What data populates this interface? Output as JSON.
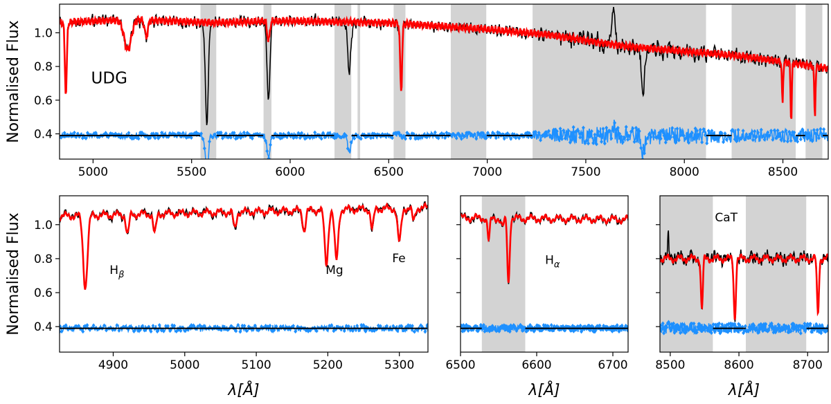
{
  "colors": {
    "observed": "#000000",
    "model": "#ff0000",
    "residual": "#1e90ff",
    "masked_region": "#d3d3d3",
    "baseline": "#000000"
  },
  "chart_data": [
    {
      "id": "full",
      "type": "line",
      "xlabel": "",
      "ylabel": "Normalised Flux",
      "xlim": [
        4830,
        8730
      ],
      "ylim": [
        0.25,
        1.17
      ],
      "xticks": [
        5000,
        5500,
        6000,
        6500,
        7000,
        7500,
        8000,
        8500
      ],
      "yticks": [
        0.4,
        0.6,
        0.8,
        1.0
      ],
      "show_ytick_labels": true,
      "baseline": 0.39,
      "masked_regions": [
        [
          5545,
          5625
        ],
        [
          5865,
          5905
        ],
        [
          6225,
          6310
        ],
        [
          6342,
          6355
        ],
        [
          6525,
          6585
        ],
        [
          6815,
          6995
        ],
        [
          7230,
          8110
        ],
        [
          8240,
          8565
        ],
        [
          8615,
          8700
        ]
      ],
      "continuum": [
        [
          4830,
          1.06
        ],
        [
          5200,
          1.08
        ],
        [
          5600,
          1.06
        ],
        [
          6000,
          1.07
        ],
        [
          6500,
          1.06
        ],
        [
          7000,
          1.02
        ],
        [
          7300,
          0.99
        ],
        [
          7700,
          0.92
        ],
        [
          8000,
          0.89
        ],
        [
          8300,
          0.86
        ],
        [
          8730,
          0.79
        ]
      ],
      "absorption_lines": [
        {
          "center": 4862,
          "depth": 0.42,
          "width": 5
        },
        {
          "center": 5176,
          "depth": 0.18,
          "width": 18
        },
        {
          "center": 5270,
          "depth": 0.1,
          "width": 8
        },
        {
          "center": 5890,
          "depth": 0.12,
          "width": 6
        },
        {
          "center": 6563,
          "depth": 0.4,
          "width": 5
        },
        {
          "center": 8498,
          "depth": 0.25,
          "width": 3
        },
        {
          "center": 8542,
          "depth": 0.35,
          "width": 3
        },
        {
          "center": 8662,
          "depth": 0.3,
          "width": 3
        }
      ],
      "noise": {
        "amplitude": [
          [
            4830,
            0.03
          ],
          [
            7200,
            0.03
          ],
          [
            7500,
            0.08
          ],
          [
            8000,
            0.07
          ],
          [
            8300,
            0.05
          ],
          [
            8730,
            0.05
          ]
        ]
      },
      "residual_noise": [
        [
          4830,
          0.018
        ],
        [
          7200,
          0.02
        ],
        [
          7500,
          0.06
        ],
        [
          8000,
          0.05
        ],
        [
          8300,
          0.04
        ],
        [
          8730,
          0.04
        ]
      ],
      "spikes": [
        {
          "x": 5577,
          "dy": -0.6
        },
        {
          "x": 5890,
          "dy": -0.35
        },
        {
          "x": 6300,
          "dy": -0.3
        },
        {
          "x": 7640,
          "dy": 0.18
        },
        {
          "x": 7790,
          "dy": -0.3
        }
      ],
      "annotations": [
        {
          "text": "UDG",
          "x": 4990,
          "y": 0.7,
          "big": true
        }
      ]
    },
    {
      "id": "hbeta_mg_fe",
      "type": "line",
      "xlabel": "λ[Å]",
      "ylabel": "Normalised Flux",
      "xlim": [
        4825,
        5340
      ],
      "ylim": [
        0.25,
        1.17
      ],
      "xticks": [
        4900,
        5000,
        5100,
        5200,
        5300
      ],
      "yticks": [
        0.4,
        0.6,
        0.8,
        1.0
      ],
      "show_ytick_labels": true,
      "baseline": 0.39,
      "masked_regions": [],
      "continuum": [
        [
          4825,
          1.05
        ],
        [
          5340,
          1.1
        ]
      ],
      "absorption_lines": [
        {
          "center": 4861,
          "depth": 0.42,
          "width": 3
        },
        {
          "center": 4891,
          "depth": 0.0,
          "width": 1
        },
        {
          "center": 4920,
          "depth": 0.12,
          "width": 2
        },
        {
          "center": 4958,
          "depth": 0.12,
          "width": 2
        },
        {
          "center": 5070,
          "depth": 0.1,
          "width": 2
        },
        {
          "center": 5167,
          "depth": 0.12,
          "width": 2
        },
        {
          "center": 5198,
          "depth": 0.32,
          "width": 2.5
        },
        {
          "center": 5212,
          "depth": 0.3,
          "width": 2.5
        },
        {
          "center": 5262,
          "depth": 0.12,
          "width": 2
        },
        {
          "center": 5300,
          "depth": 0.2,
          "width": 2.5
        },
        {
          "center": 5320,
          "depth": 0.08,
          "width": 2
        }
      ],
      "noise": {
        "amplitude": [
          [
            4825,
            0.03
          ],
          [
            5340,
            0.03
          ]
        ]
      },
      "residual_noise": [
        [
          4825,
          0.02
        ],
        [
          5340,
          0.02
        ]
      ],
      "spikes": [],
      "annotations": [
        {
          "text": "H",
          "sub": "β",
          "x": 4895,
          "y": 0.71
        },
        {
          "text": "Mg",
          "x": 5197,
          "y": 0.71
        },
        {
          "text": "Fe",
          "x": 5290,
          "y": 0.78
        }
      ]
    },
    {
      "id": "halpha",
      "type": "line",
      "xlabel": "λ[Å]",
      "ylabel": "",
      "xlim": [
        6500,
        6720
      ],
      "ylim": [
        0.25,
        1.17
      ],
      "xticks": [
        6500,
        6600,
        6700
      ],
      "yticks": [
        0.4,
        0.6,
        0.8,
        1.0
      ],
      "show_ytick_labels": false,
      "baseline": 0.39,
      "masked_regions": [
        [
          6528,
          6585
        ]
      ],
      "continuum": [
        [
          6500,
          1.04
        ],
        [
          6720,
          1.03
        ]
      ],
      "absorption_lines": [
        {
          "center": 6537,
          "depth": 0.13,
          "width": 1.5
        },
        {
          "center": 6563,
          "depth": 0.38,
          "width": 1.5
        },
        {
          "center": 6555,
          "depth": 0.05,
          "width": 2
        }
      ],
      "noise": {
        "amplitude": [
          [
            6500,
            0.02
          ],
          [
            6720,
            0.02
          ]
        ]
      },
      "residual_noise": [
        [
          6500,
          0.02
        ],
        [
          6720,
          0.02
        ]
      ],
      "spikes": [],
      "annotations": [
        {
          "text": "H",
          "sub": "α",
          "x": 6611,
          "y": 0.77
        }
      ]
    },
    {
      "id": "cat",
      "type": "line",
      "xlabel": "λ[Å]",
      "ylabel": "",
      "xlim": [
        8485,
        8730
      ],
      "ylim": [
        0.25,
        1.17
      ],
      "xticks": [
        8500,
        8600,
        8700
      ],
      "yticks": [
        0.4,
        0.6,
        0.8,
        1.0
      ],
      "show_ytick_labels": false,
      "baseline": 0.39,
      "masked_regions": [
        [
          8485,
          8562
        ],
        [
          8610,
          8698
        ]
      ],
      "continuum": [
        [
          8485,
          0.8
        ],
        [
          8730,
          0.8
        ]
      ],
      "absorption_lines": [
        {
          "center": 8546,
          "depth": 0.3,
          "width": 1.4
        },
        {
          "center": 8594,
          "depth": 0.35,
          "width": 1.5
        },
        {
          "center": 8715,
          "depth": 0.33,
          "width": 1.4
        }
      ],
      "noise": {
        "amplitude": [
          [
            8485,
            0.05
          ],
          [
            8730,
            0.05
          ]
        ]
      },
      "residual_noise": [
        [
          8485,
          0.03
        ],
        [
          8730,
          0.03
        ]
      ],
      "spikes": [
        {
          "x": 8497,
          "dy": 0.14
        }
      ],
      "annotations": [
        {
          "text": "CaT",
          "x": 8565,
          "y": 1.02
        }
      ]
    }
  ]
}
